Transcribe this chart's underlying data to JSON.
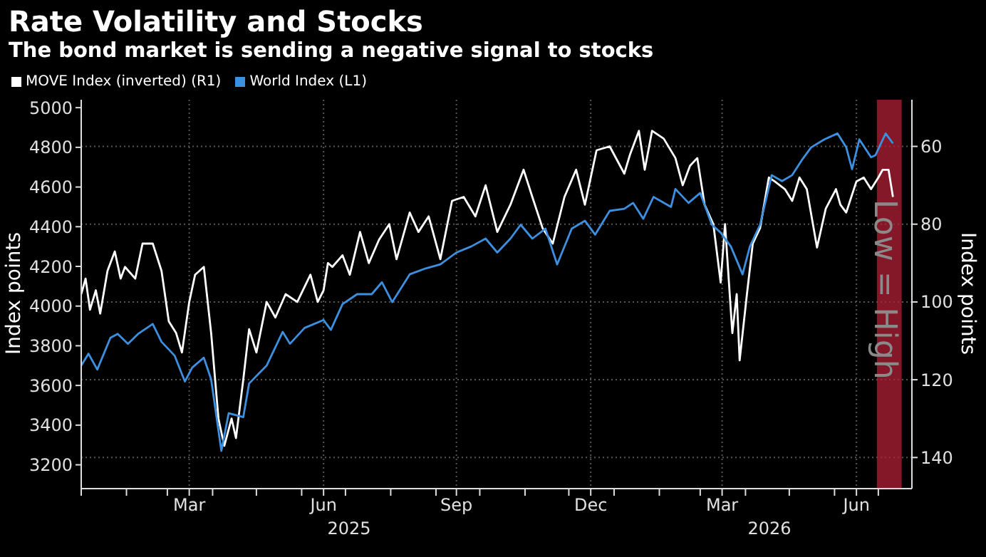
{
  "chart_data": {
    "type": "line",
    "title": "Rate Volatility and Stocks",
    "subtitle": "The bond market is sending a negative signal to stocks",
    "ylabel": "Index points",
    "y2label": "Index points",
    "xlim": [
      "2025-01-01",
      "2026-07-24"
    ],
    "xticks": [
      {
        "value": "2025-01-01",
        "label": null
      },
      {
        "value": "2025-02-01",
        "label": null
      },
      {
        "value": "2025-03-01",
        "label": null
      },
      {
        "value": "2025-03-16",
        "label": "Mar"
      },
      {
        "value": "2025-04-01",
        "label": null
      },
      {
        "value": "2025-05-01",
        "label": null
      },
      {
        "value": "2025-06-01",
        "label": null
      },
      {
        "value": "2025-06-16",
        "label": "Jun"
      },
      {
        "value": "2025-07-01",
        "label": null
      },
      {
        "value": "2025-08-01",
        "label": null
      },
      {
        "value": "2025-09-01",
        "label": null
      },
      {
        "value": "2025-09-15",
        "label": "Sep"
      },
      {
        "value": "2025-10-01",
        "label": null
      },
      {
        "value": "2025-11-01",
        "label": null
      },
      {
        "value": "2025-12-01",
        "label": null
      },
      {
        "value": "2025-12-16",
        "label": "Dec"
      },
      {
        "value": "2026-01-01",
        "label": null
      },
      {
        "value": "2026-02-01",
        "label": null
      },
      {
        "value": "2026-03-01",
        "label": null
      },
      {
        "value": "2026-03-16",
        "label": "Mar"
      },
      {
        "value": "2026-04-01",
        "label": null
      },
      {
        "value": "2026-05-01",
        "label": null
      },
      {
        "value": "2026-06-01",
        "label": null
      },
      {
        "value": "2026-06-16",
        "label": "Jun"
      },
      {
        "value": "2026-07-01",
        "label": null
      }
    ],
    "ylim": [
      3080,
      5040
    ],
    "yticks": [
      3200,
      3400,
      3600,
      3800,
      4000,
      4200,
      4400,
      4600,
      4800,
      5000
    ],
    "y2lim": [
      148,
      48
    ],
    "y2ticks": [
      60,
      80,
      100,
      120,
      140
    ],
    "grid": true,
    "legend": "top left",
    "marker": "none",
    "line_style": "solid",
    "bands": [
      {
        "axis": "x",
        "from": "2026-06-30",
        "to": "2026-07-17",
        "color": "#b22035"
      }
    ],
    "annotations": [
      "2025",
      "2026",
      "Low = High"
    ],
    "series": [
      {
        "name": "MOVE Index (inverted) (R1)",
        "color": "#ffffff",
        "axis": "y2",
        "x": [
          "2025-01-01",
          "2025-01-04",
          "2025-01-07",
          "2025-01-11",
          "2025-01-14",
          "2025-01-19",
          "2025-01-24",
          "2025-01-28",
          "2025-01-31",
          "2025-02-07",
          "2025-02-12",
          "2025-02-19",
          "2025-02-25",
          "2025-03-02",
          "2025-03-07",
          "2025-03-11",
          "2025-03-16",
          "2025-03-20",
          "2025-03-26",
          "2025-03-31",
          "2025-04-05",
          "2025-04-09",
          "2025-04-14",
          "2025-04-17",
          "2025-04-22",
          "2025-04-26",
          "2025-05-01",
          "2025-05-08",
          "2025-05-14",
          "2025-05-21",
          "2025-05-29",
          "2025-06-07",
          "2025-06-12",
          "2025-06-16",
          "2025-06-19",
          "2025-06-22",
          "2025-06-29",
          "2025-07-04",
          "2025-07-11",
          "2025-07-17",
          "2025-07-24",
          "2025-07-31",
          "2025-08-05",
          "2025-08-14",
          "2025-08-20",
          "2025-08-27",
          "2025-09-04",
          "2025-09-12",
          "2025-09-20",
          "2025-09-28",
          "2025-10-05",
          "2025-10-13",
          "2025-10-22",
          "2025-10-31",
          "2025-11-06",
          "2025-11-13",
          "2025-11-20",
          "2025-11-28",
          "2025-12-06",
          "2025-12-12",
          "2025-12-20",
          "2025-12-29",
          "2026-01-08",
          "2026-01-12",
          "2026-01-18",
          "2026-01-22",
          "2026-01-27",
          "2026-02-04",
          "2026-02-12",
          "2026-02-17",
          "2026-02-22",
          "2026-02-27",
          "2026-03-04",
          "2026-03-10",
          "2026-03-15",
          "2026-03-18",
          "2026-03-23",
          "2026-03-26",
          "2026-03-28",
          "2026-04-02",
          "2026-04-06",
          "2026-04-11",
          "2026-04-17",
          "2026-04-21",
          "2026-04-28",
          "2026-05-03",
          "2026-05-08",
          "2026-05-13",
          "2026-05-20",
          "2026-05-26",
          "2026-06-02",
          "2026-06-05",
          "2026-06-09",
          "2026-06-16",
          "2026-06-21",
          "2026-06-26",
          "2026-07-01",
          "2026-07-04",
          "2026-07-08",
          "2026-07-11"
        ],
        "values": [
          98,
          94,
          102,
          97,
          103,
          92,
          87,
          94,
          91,
          94,
          85,
          85,
          92,
          105,
          108,
          113,
          100,
          93,
          91,
          108,
          130,
          137,
          130,
          135,
          120,
          107,
          113,
          100,
          104,
          98,
          100,
          93,
          100,
          97,
          90,
          91,
          88,
          93,
          82,
          90,
          84,
          80,
          89,
          77,
          82,
          78,
          89,
          74,
          73,
          78,
          70,
          82,
          75,
          66,
          73,
          81,
          85,
          73,
          66,
          75,
          61,
          60,
          67,
          62,
          56,
          66,
          56,
          58,
          63,
          70,
          65,
          63,
          75,
          80,
          95,
          80,
          108,
          98,
          115,
          98,
          85,
          81,
          68,
          69,
          71,
          74,
          68,
          71,
          86,
          76,
          71,
          75,
          77,
          69,
          68,
          71,
          68,
          66,
          66,
          73
        ]
      },
      {
        "name": "World Index (L1)",
        "color": "#3d8fe0",
        "x": [
          "2025-01-01",
          "2025-01-06",
          "2025-01-12",
          "2025-01-21",
          "2025-01-26",
          "2025-02-02",
          "2025-02-09",
          "2025-02-19",
          "2025-02-25",
          "2025-03-06",
          "2025-03-13",
          "2025-03-18",
          "2025-03-26",
          "2025-03-31",
          "2025-04-07",
          "2025-04-12",
          "2025-04-22",
          "2025-04-26",
          "2025-05-08",
          "2025-05-19",
          "2025-05-24",
          "2025-06-03",
          "2025-06-16",
          "2025-06-21",
          "2025-06-29",
          "2025-07-09",
          "2025-07-19",
          "2025-07-26",
          "2025-08-02",
          "2025-08-14",
          "2025-08-25",
          "2025-09-04",
          "2025-09-15",
          "2025-09-25",
          "2025-10-05",
          "2025-10-13",
          "2025-10-22",
          "2025-10-29",
          "2025-11-06",
          "2025-11-15",
          "2025-11-23",
          "2025-12-03",
          "2025-12-12",
          "2025-12-19",
          "2025-12-29",
          "2026-01-08",
          "2026-01-14",
          "2026-01-21",
          "2026-01-28",
          "2026-02-09",
          "2026-02-12",
          "2026-02-21",
          "2026-03-01",
          "2026-03-09",
          "2026-03-15",
          "2026-03-22",
          "2026-03-30",
          "2026-04-04",
          "2026-04-11",
          "2026-04-19",
          "2026-04-26",
          "2026-05-03",
          "2026-05-10",
          "2026-05-16",
          "2026-05-25",
          "2026-06-03",
          "2026-06-09",
          "2026-06-13",
          "2026-06-18",
          "2026-06-26",
          "2026-06-29",
          "2026-07-06",
          "2026-07-11"
        ],
        "values": [
          3700,
          3760,
          3680,
          3840,
          3860,
          3810,
          3860,
          3910,
          3820,
          3750,
          3620,
          3690,
          3740,
          3630,
          3270,
          3460,
          3440,
          3610,
          3700,
          3870,
          3810,
          3890,
          3930,
          3880,
          4010,
          4060,
          4060,
          4120,
          4020,
          4160,
          4190,
          4210,
          4270,
          4300,
          4340,
          4270,
          4340,
          4410,
          4340,
          4390,
          4210,
          4390,
          4430,
          4360,
          4480,
          4490,
          4520,
          4440,
          4550,
          4500,
          4590,
          4520,
          4570,
          4410,
          4370,
          4300,
          4160,
          4300,
          4410,
          4660,
          4630,
          4660,
          4740,
          4800,
          4840,
          4870,
          4800,
          4690,
          4840,
          4750,
          4760,
          4870,
          4820
        ]
      }
    ]
  }
}
